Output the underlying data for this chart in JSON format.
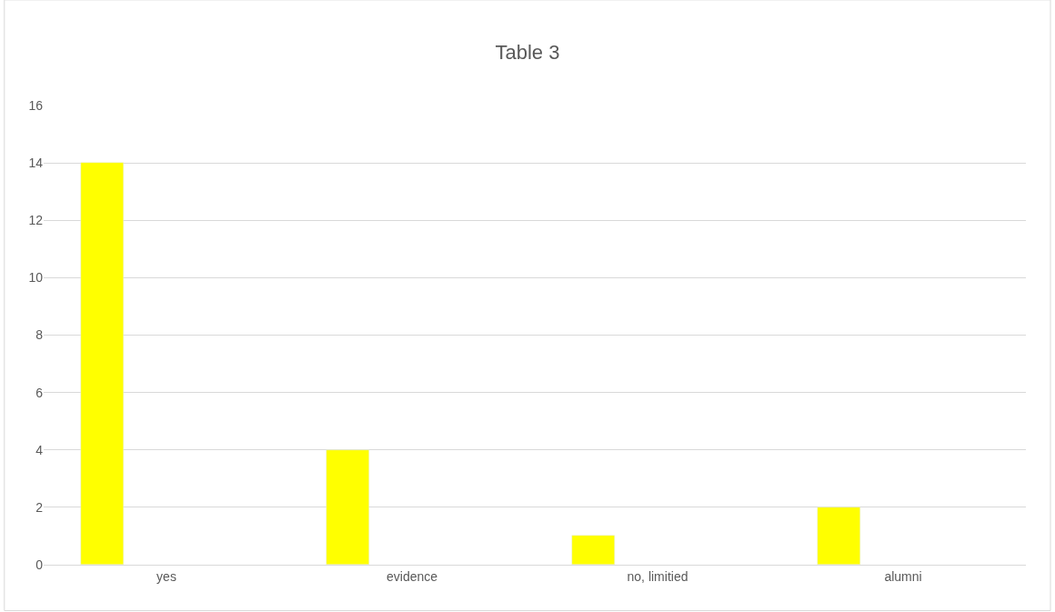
{
  "chart_data": {
    "type": "bar",
    "title": "Table 3",
    "categories": [
      "yes",
      "evidence",
      "no, limitied",
      "alumni"
    ],
    "values": [
      14,
      4,
      1,
      2
    ],
    "color": "#ffff00",
    "ylim": [
      0,
      16
    ],
    "yticks": [
      0,
      2,
      4,
      6,
      8,
      10,
      12,
      14,
      16
    ],
    "grid": "y",
    "legend": false
  }
}
